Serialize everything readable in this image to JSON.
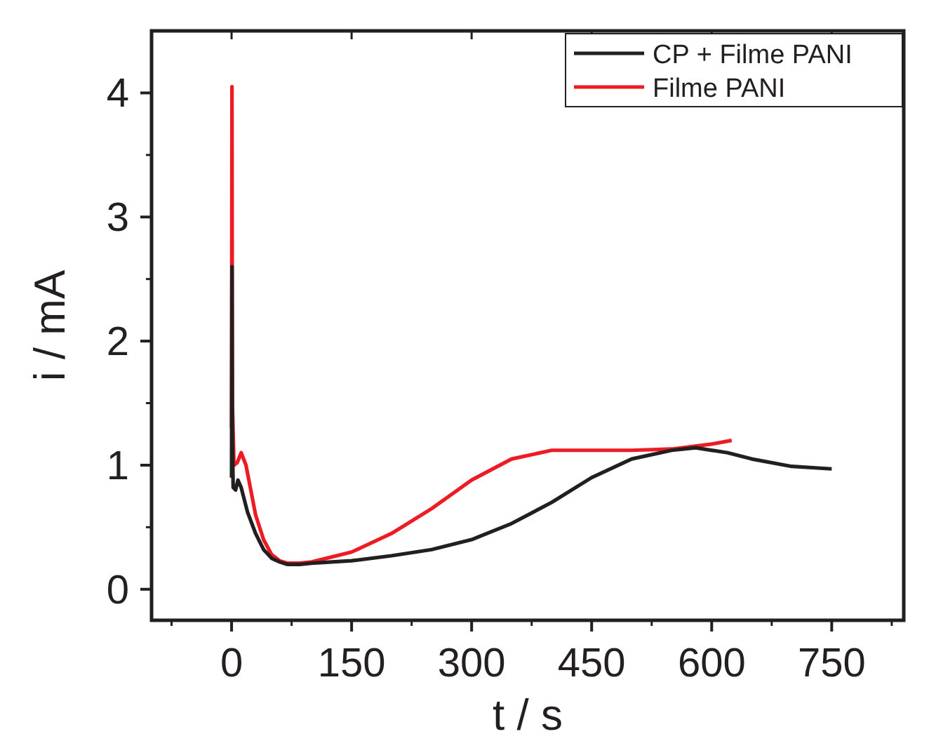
{
  "chart_data": {
    "type": "line",
    "xlabel": "t / s",
    "ylabel": "i / mA",
    "xlim": [
      -100,
      840
    ],
    "ylim": [
      -0.25,
      4.5
    ],
    "xticks": [
      0,
      150,
      300,
      450,
      600,
      750
    ],
    "yticks": [
      0,
      1,
      2,
      3,
      4
    ],
    "legend": "top right",
    "grid": false,
    "series": [
      {
        "name": "CP + Filme PANI",
        "color": "#231f20",
        "x": [
          0,
          0.5,
          1,
          2,
          5,
          8,
          12,
          20,
          30,
          40,
          50,
          60,
          70,
          85,
          100,
          150,
          200,
          250,
          300,
          350,
          400,
          450,
          500,
          550,
          580,
          620,
          650,
          700,
          750
        ],
        "values": [
          0.9,
          2.6,
          1.2,
          0.82,
          0.8,
          0.88,
          0.82,
          0.62,
          0.45,
          0.32,
          0.25,
          0.22,
          0.2,
          0.2,
          0.21,
          0.23,
          0.27,
          0.32,
          0.4,
          0.53,
          0.7,
          0.9,
          1.05,
          1.12,
          1.14,
          1.1,
          1.05,
          0.99,
          0.97
        ]
      },
      {
        "name": "Filme PANI",
        "color": "#ed1c24",
        "x": [
          0,
          0.5,
          1,
          3,
          7,
          12,
          18,
          30,
          40,
          50,
          60,
          70,
          85,
          100,
          150,
          200,
          250,
          300,
          350,
          400,
          450,
          500,
          550,
          600,
          625
        ],
        "values": [
          1.3,
          4.05,
          1.5,
          1.0,
          1.02,
          1.1,
          1.0,
          0.6,
          0.4,
          0.28,
          0.23,
          0.21,
          0.21,
          0.22,
          0.3,
          0.45,
          0.65,
          0.88,
          1.05,
          1.12,
          1.12,
          1.12,
          1.13,
          1.17,
          1.2
        ]
      }
    ]
  }
}
